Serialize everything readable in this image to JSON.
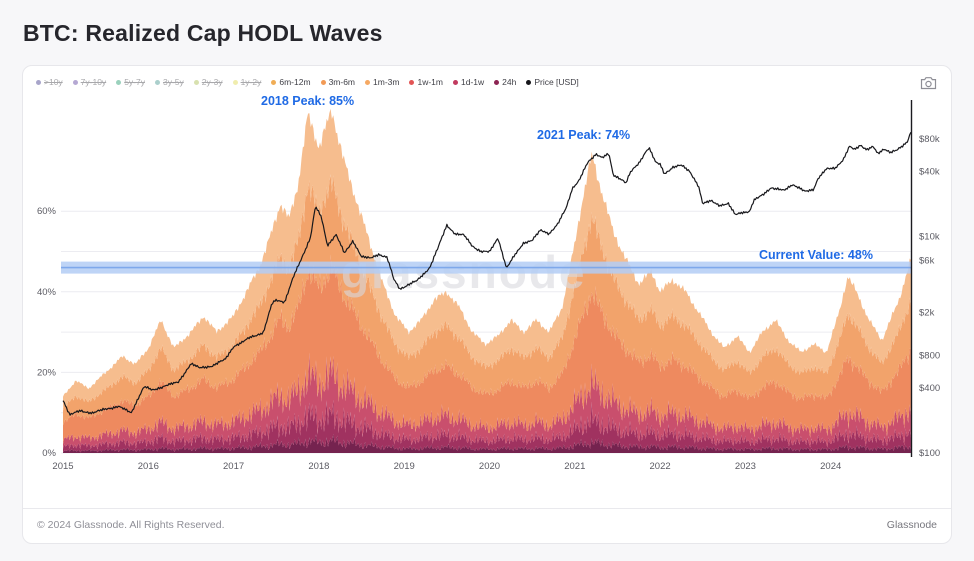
{
  "page": {
    "title": "BTC: Realized Cap HODL Waves",
    "footer_left": "© 2024 Glassnode. All Rights Reserved.",
    "footer_right": "Glassnode"
  },
  "watermark": "glassnode",
  "annotations": {
    "peak2018": "2018 Peak: 85%",
    "peak2021": "2021 Peak: 74%",
    "current": "Current Value: 48%"
  },
  "legend": {
    "items": [
      {
        "label": ">10y",
        "color": "#413a8c",
        "active": false
      },
      {
        "label": "7y-10y",
        "color": "#5d3f9e",
        "active": false
      },
      {
        "label": "5y-7y",
        "color": "#219a6d",
        "active": false
      },
      {
        "label": "3y-5y",
        "color": "#46978f",
        "active": false
      },
      {
        "label": "2y-3y",
        "color": "#a9bd4f",
        "active": false
      },
      {
        "label": "1y-2y",
        "color": "#dfd84e",
        "active": false
      },
      {
        "label": "6m-12m",
        "color": "#f0ad56",
        "active": true
      },
      {
        "label": "3m-6m",
        "color": "#f29a55",
        "active": true
      },
      {
        "label": "1m-3m",
        "color": "#f6a963",
        "active": true
      },
      {
        "label": "1w-1m",
        "color": "#e25555",
        "active": true
      },
      {
        "label": "1d-1w",
        "color": "#c13a5f",
        "active": true
      },
      {
        "label": "24h",
        "color": "#8c2453",
        "active": true
      },
      {
        "label": "Price [USD]",
        "color": "#16161a",
        "active": true
      }
    ]
  },
  "colors": {
    "annotation_blue": "#1f6ae5",
    "current_band_fill": "#b3cdf4",
    "current_band_line": "#78a4ea",
    "price_line": "#17171b",
    "grid": "#ececf1",
    "watermark": "#d9d9df",
    "axis_spine": "#1b1b20"
  },
  "chart_data": {
    "type": "area",
    "stacked": true,
    "title": "BTC: Realized Cap HODL Waves",
    "x_axis": {
      "ticks": [
        2015,
        2016,
        2017,
        2018,
        2019,
        2020,
        2021,
        2022,
        2023,
        2024
      ]
    },
    "y_axis_left": {
      "unit": "%",
      "ticks": [
        {
          "label": "0%",
          "value": 0
        },
        {
          "label": "20%",
          "value": 20
        },
        {
          "label": "40%",
          "value": 40
        },
        {
          "label": "60%",
          "value": 60
        }
      ]
    },
    "y_axis_right": {
      "unit": "USD",
      "scale": "log",
      "ticks": [
        {
          "label": "$100",
          "value": 100
        },
        {
          "label": "$400",
          "value": 400
        },
        {
          "label": "$800",
          "value": 800
        },
        {
          "label": "$2k",
          "value": 2000
        },
        {
          "label": "$6k",
          "value": 6000
        },
        {
          "label": "$10k",
          "value": 10000
        },
        {
          "label": "$40k",
          "value": 40000
        },
        {
          "label": "$80k",
          "value": 80000
        }
      ]
    },
    "peaks": [
      {
        "year": 2018,
        "value_pct": 85
      },
      {
        "year": 2021,
        "value_pct": 74
      }
    ],
    "current_value_pct": 48,
    "bands_order": [
      "24h",
      "1d-1w",
      "1w-1m",
      "1m-3m",
      "3m-6m",
      "6m-12m"
    ],
    "band_shares": {
      "24h": 0.035,
      "1d-1w": 0.075,
      "1w-1m": 0.12,
      "1m-3m": 0.31,
      "3m-6m": 0.25,
      "6m-12m": 0.21
    },
    "band_colors": {
      "24h": "#75234f",
      "1d-1w": "#a03260",
      "1w-1m": "#c94f6d",
      "1m-3m": "#ee8a5f",
      "3m-6m": "#f2a36b",
      "6m-12m": "#f6bd8e"
    },
    "total_waves_pct": [
      [
        2015.0,
        14
      ],
      [
        2015.15,
        18
      ],
      [
        2015.3,
        16
      ],
      [
        2015.5,
        20
      ],
      [
        2015.7,
        24
      ],
      [
        2015.85,
        22
      ],
      [
        2016.0,
        26
      ],
      [
        2016.15,
        33
      ],
      [
        2016.3,
        26
      ],
      [
        2016.5,
        30
      ],
      [
        2016.65,
        34
      ],
      [
        2016.8,
        30
      ],
      [
        2017.0,
        34
      ],
      [
        2017.15,
        40
      ],
      [
        2017.3,
        46
      ],
      [
        2017.45,
        55
      ],
      [
        2017.55,
        62
      ],
      [
        2017.65,
        58
      ],
      [
        2017.75,
        66
      ],
      [
        2017.87,
        84
      ],
      [
        2018.0,
        76
      ],
      [
        2018.15,
        85
      ],
      [
        2018.3,
        72
      ],
      [
        2018.45,
        62
      ],
      [
        2018.6,
        52
      ],
      [
        2018.75,
        42
      ],
      [
        2018.9,
        34
      ],
      [
        2019.05,
        30
      ],
      [
        2019.2,
        33
      ],
      [
        2019.35,
        38
      ],
      [
        2019.5,
        40
      ],
      [
        2019.65,
        36
      ],
      [
        2019.8,
        30
      ],
      [
        2019.95,
        27
      ],
      [
        2020.1,
        29
      ],
      [
        2020.25,
        33
      ],
      [
        2020.4,
        30
      ],
      [
        2020.55,
        33
      ],
      [
        2020.7,
        30
      ],
      [
        2020.85,
        36
      ],
      [
        2021.0,
        52
      ],
      [
        2021.1,
        64
      ],
      [
        2021.2,
        74
      ],
      [
        2021.3,
        66
      ],
      [
        2021.45,
        55
      ],
      [
        2021.6,
        48
      ],
      [
        2021.75,
        42
      ],
      [
        2021.9,
        45
      ],
      [
        2022.0,
        40
      ],
      [
        2022.15,
        43
      ],
      [
        2022.3,
        40
      ],
      [
        2022.45,
        35
      ],
      [
        2022.6,
        30
      ],
      [
        2022.75,
        26
      ],
      [
        2022.9,
        29
      ],
      [
        2023.05,
        25
      ],
      [
        2023.2,
        30
      ],
      [
        2023.35,
        33
      ],
      [
        2023.5,
        28
      ],
      [
        2023.65,
        25
      ],
      [
        2023.8,
        27
      ],
      [
        2023.95,
        25
      ],
      [
        2024.1,
        35
      ],
      [
        2024.2,
        44
      ],
      [
        2024.3,
        40
      ],
      [
        2024.45,
        33
      ],
      [
        2024.6,
        28
      ],
      [
        2024.7,
        33
      ],
      [
        2024.8,
        38
      ],
      [
        2024.94,
        48
      ]
    ],
    "price_usd": [
      [
        2015.0,
        310
      ],
      [
        2015.08,
        225
      ],
      [
        2015.2,
        245
      ],
      [
        2015.35,
        235
      ],
      [
        2015.5,
        255
      ],
      [
        2015.65,
        270
      ],
      [
        2015.8,
        235
      ],
      [
        2015.88,
        320
      ],
      [
        2015.95,
        410
      ],
      [
        2016.05,
        380
      ],
      [
        2016.2,
        420
      ],
      [
        2016.35,
        450
      ],
      [
        2016.5,
        670
      ],
      [
        2016.6,
        610
      ],
      [
        2016.75,
        640
      ],
      [
        2016.9,
        730
      ],
      [
        2017.0,
        970
      ],
      [
        2017.1,
        1050
      ],
      [
        2017.2,
        1180
      ],
      [
        2017.35,
        1300
      ],
      [
        2017.45,
        2400
      ],
      [
        2017.5,
        2600
      ],
      [
        2017.6,
        2500
      ],
      [
        2017.7,
        4200
      ],
      [
        2017.8,
        6400
      ],
      [
        2017.9,
        9800
      ],
      [
        2017.96,
        19000
      ],
      [
        2018.03,
        15000
      ],
      [
        2018.1,
        8300
      ],
      [
        2018.2,
        10500
      ],
      [
        2018.3,
        7000
      ],
      [
        2018.4,
        9200
      ],
      [
        2018.5,
        6500
      ],
      [
        2018.6,
        6300
      ],
      [
        2018.7,
        6900
      ],
      [
        2018.8,
        6400
      ],
      [
        2018.88,
        4000
      ],
      [
        2018.95,
        3300
      ],
      [
        2019.05,
        3600
      ],
      [
        2019.15,
        3900
      ],
      [
        2019.3,
        5200
      ],
      [
        2019.4,
        8000
      ],
      [
        2019.5,
        12800
      ],
      [
        2019.6,
        10600
      ],
      [
        2019.7,
        10300
      ],
      [
        2019.8,
        8200
      ],
      [
        2019.9,
        7300
      ],
      [
        2020.0,
        7200
      ],
      [
        2020.1,
        9800
      ],
      [
        2020.2,
        5100
      ],
      [
        2020.3,
        6800
      ],
      [
        2020.4,
        8800
      ],
      [
        2020.5,
        9200
      ],
      [
        2020.6,
        11500
      ],
      [
        2020.7,
        10700
      ],
      [
        2020.8,
        13000
      ],
      [
        2020.9,
        18500
      ],
      [
        2020.97,
        28000
      ],
      [
        2021.05,
        33000
      ],
      [
        2021.15,
        48000
      ],
      [
        2021.25,
        58500
      ],
      [
        2021.32,
        54000
      ],
      [
        2021.4,
        58000
      ],
      [
        2021.45,
        37000
      ],
      [
        2021.55,
        34000
      ],
      [
        2021.6,
        31500
      ],
      [
        2021.65,
        39000
      ],
      [
        2021.75,
        47500
      ],
      [
        2021.83,
        61000
      ],
      [
        2021.87,
        67000
      ],
      [
        2021.95,
        48000
      ],
      [
        2022.0,
        46500
      ],
      [
        2022.05,
        38000
      ],
      [
        2022.15,
        44000
      ],
      [
        2022.25,
        45500
      ],
      [
        2022.35,
        40000
      ],
      [
        2022.45,
        29500
      ],
      [
        2022.5,
        20000
      ],
      [
        2022.6,
        21500
      ],
      [
        2022.7,
        19500
      ],
      [
        2022.8,
        20000
      ],
      [
        2022.88,
        16000
      ],
      [
        2022.95,
        16800
      ],
      [
        2023.05,
        17000
      ],
      [
        2023.1,
        21500
      ],
      [
        2023.2,
        24500
      ],
      [
        2023.3,
        28300
      ],
      [
        2023.35,
        27500
      ],
      [
        2023.45,
        26800
      ],
      [
        2023.55,
        30500
      ],
      [
        2023.6,
        29000
      ],
      [
        2023.7,
        26000
      ],
      [
        2023.8,
        27500
      ],
      [
        2023.85,
        34500
      ],
      [
        2023.95,
        42000
      ],
      [
        2024.05,
        43000
      ],
      [
        2024.15,
        52000
      ],
      [
        2024.22,
        68000
      ],
      [
        2024.28,
        63500
      ],
      [
        2024.35,
        70500
      ],
      [
        2024.42,
        64000
      ],
      [
        2024.5,
        67500
      ],
      [
        2024.55,
        58000
      ],
      [
        2024.63,
        65000
      ],
      [
        2024.7,
        60500
      ],
      [
        2024.78,
        63000
      ],
      [
        2024.85,
        69000
      ],
      [
        2024.9,
        76000
      ],
      [
        2024.94,
        94000
      ]
    ]
  }
}
